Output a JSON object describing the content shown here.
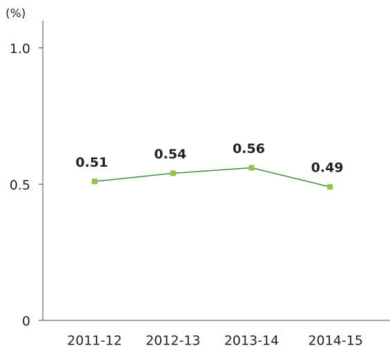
{
  "chart_data": {
    "type": "line",
    "y_label": "(%)",
    "categories": [
      "2011-12",
      "2012-13",
      "2013-14",
      "2014-15"
    ],
    "values": [
      0.51,
      0.54,
      0.56,
      0.49
    ],
    "line_color": "#3d8b3d",
    "marker_color": "#8dc63f",
    "ylim": [
      0,
      1.1
    ],
    "yticks": [
      0,
      0.5,
      {
        "value": 1,
        "label": "1.0"
      }
    ]
  }
}
